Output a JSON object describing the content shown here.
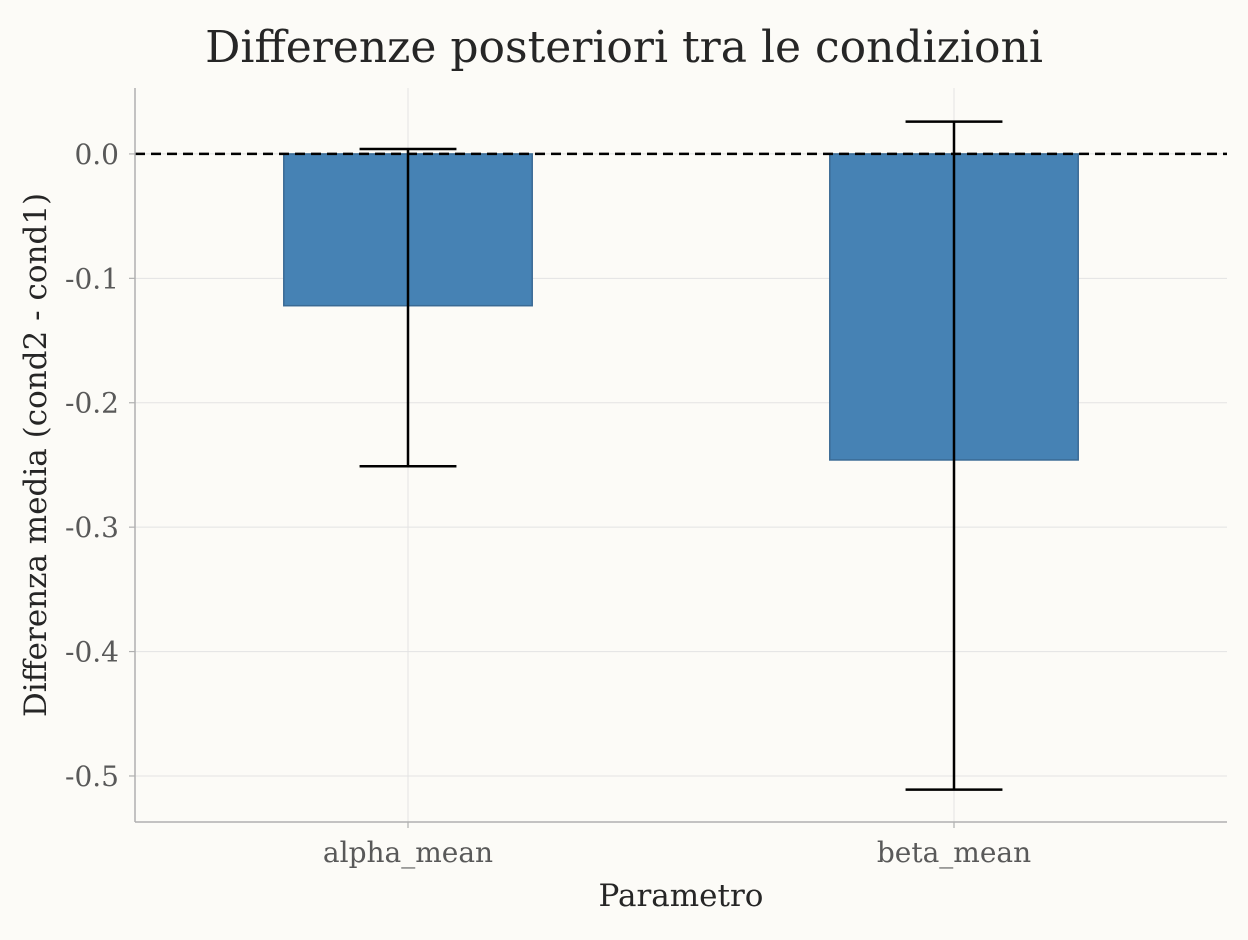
{
  "chart_data": {
    "type": "bar",
    "title": "Differenze posteriori tra le condizioni",
    "xlabel": "Parametro",
    "ylabel": "Differenza media (cond2 - cond1)",
    "categories": [
      "alpha_mean",
      "beta_mean"
    ],
    "values": [
      -0.122,
      -0.246
    ],
    "error_lower": [
      -0.251,
      -0.511
    ],
    "error_upper": [
      0.004,
      0.026
    ],
    "reference_line": 0.0,
    "ylim": [
      -0.537,
      0.053
    ],
    "yticks": [
      0.0,
      -0.1,
      -0.2,
      -0.3,
      -0.4,
      -0.5
    ],
    "ytick_labels": [
      "0.0",
      "-0.1",
      "-0.2",
      "-0.3",
      "-0.4",
      "-0.5"
    ],
    "grid": true,
    "colors": {
      "bar": "#4682b4",
      "bar_edge": "#3a6a94",
      "error_bar": "#000000",
      "reference_line": "#000000",
      "grid": "#e3e3e3",
      "background": "#fcfbf7",
      "axis": "#b0b0b0"
    }
  }
}
